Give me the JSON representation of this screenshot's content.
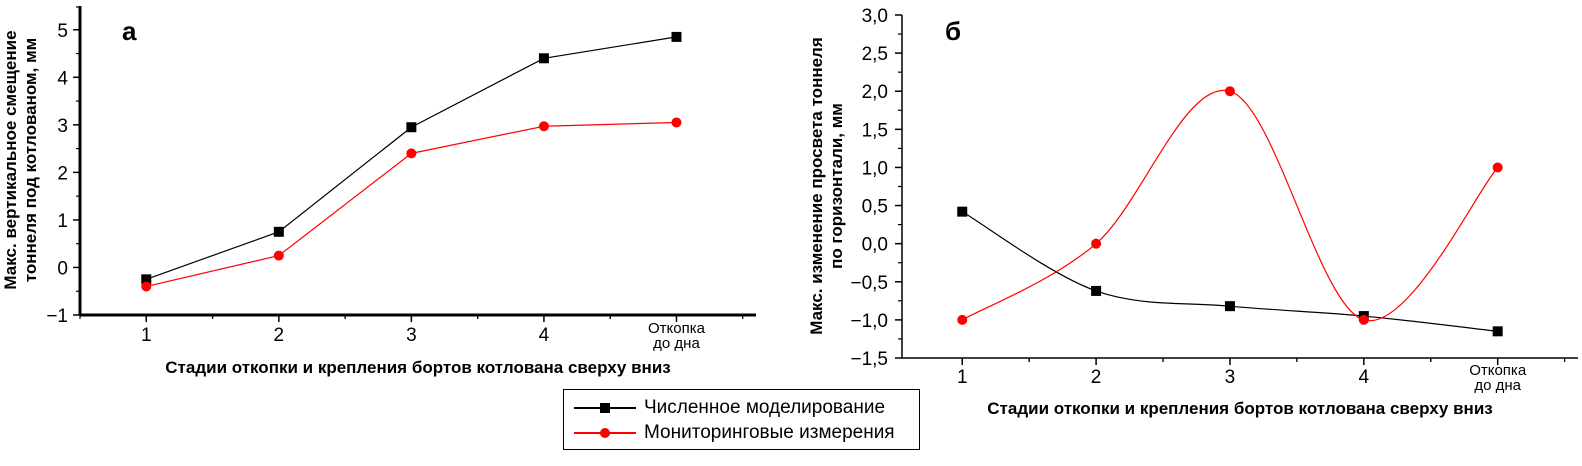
{
  "chart_data": [
    {
      "type": "line",
      "panel_label": "а",
      "title": "",
      "xlabel": "Стадии откопки и крепления бортов котлована сверху вниз",
      "ylabel_lines": [
        "Макс. вертикальное смещение",
        "тоннеля под котлованом, мм"
      ],
      "categories": [
        "1",
        "2",
        "3",
        "4",
        "Откопка до дна"
      ],
      "category_lines": [
        [
          "1"
        ],
        [
          "2"
        ],
        [
          "3"
        ],
        [
          "4"
        ],
        [
          "Откопка",
          "до дна"
        ]
      ],
      "y_ticks": [
        -1,
        0,
        1,
        2,
        3,
        4,
        5
      ],
      "y_tick_labels": [
        "−1",
        "0",
        "1",
        "2",
        "3",
        "4",
        "5"
      ],
      "ylim": [
        -1,
        5.5
      ],
      "xlim": [
        0.5,
        5.6
      ],
      "smooth": false,
      "grid": false,
      "series": [
        {
          "name": "Численное моделирование",
          "color": "#000000",
          "marker": "square",
          "values": [
            -0.25,
            0.75,
            2.95,
            4.4,
            4.85
          ]
        },
        {
          "name": "Мониторинговые измерения",
          "color": "#ff0000",
          "marker": "circle",
          "values": [
            -0.4,
            0.25,
            2.4,
            2.97,
            3.05
          ]
        }
      ]
    },
    {
      "type": "line",
      "panel_label": "б",
      "title": "",
      "xlabel": "Стадии откопки и крепления бортов котлована сверху вниз",
      "ylabel_lines": [
        "Макс. изменение просвета тоннеля",
        "по горизонтали, мм"
      ],
      "categories": [
        "1",
        "2",
        "3",
        "4",
        "Откопка до дна"
      ],
      "category_lines": [
        [
          "1"
        ],
        [
          "2"
        ],
        [
          "3"
        ],
        [
          "4"
        ],
        [
          "Откопка",
          "до дна"
        ]
      ],
      "y_ticks": [
        -1.5,
        -1.0,
        -0.5,
        0.0,
        0.5,
        1.0,
        1.5,
        2.0,
        2.5,
        3.0
      ],
      "y_tick_labels": [
        "−1,5",
        "−1,0",
        "−0,5",
        "0,0",
        "0,5",
        "1,0",
        "1,5",
        "2,0",
        "2,5",
        "3,0"
      ],
      "ylim": [
        -1.5,
        3.0
      ],
      "xlim": [
        0.55,
        5.6
      ],
      "smooth": true,
      "grid": false,
      "series": [
        {
          "name": "Численное моделирование",
          "color": "#000000",
          "marker": "square",
          "values": [
            0.42,
            -0.62,
            -0.82,
            -0.95,
            -1.15
          ]
        },
        {
          "name": "Мониторинговые измерения",
          "color": "#ff0000",
          "marker": "circle",
          "values": [
            -1.0,
            0.0,
            2.0,
            -1.0,
            1.0
          ]
        }
      ]
    }
  ],
  "legend": {
    "placement": "bottom-center",
    "items": [
      {
        "label": "Численное моделирование",
        "color": "#000000",
        "marker": "square"
      },
      {
        "label": "Мониторинговые измерения",
        "color": "#ff0000",
        "marker": "circle"
      }
    ]
  }
}
